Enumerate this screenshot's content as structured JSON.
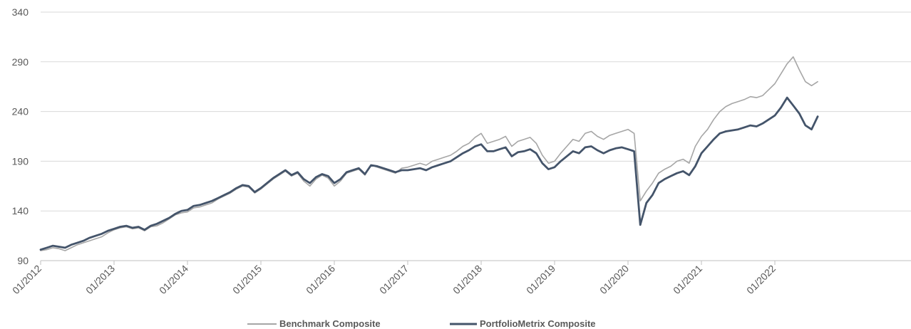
{
  "chart_data": {
    "type": "line",
    "title": "",
    "xlabel": "",
    "ylabel": "",
    "ylim": [
      90,
      340
    ],
    "y_ticks": [
      "90",
      "140",
      "190",
      "240",
      "290",
      "340"
    ],
    "x_range": [
      "01/2012",
      "08/2022"
    ],
    "x_ticks": [
      "01/2012",
      "01/2013",
      "01/2014",
      "01/2015",
      "01/2016",
      "01/2017",
      "01/2018",
      "01/2019",
      "01/2020",
      "01/2021",
      "01/2022"
    ],
    "grid": "horizontal",
    "legend_position": "bottom",
    "x": [
      "01/2012",
      "02/2012",
      "03/2012",
      "04/2012",
      "05/2012",
      "06/2012",
      "07/2012",
      "08/2012",
      "09/2012",
      "10/2012",
      "11/2012",
      "12/2012",
      "01/2013",
      "02/2013",
      "03/2013",
      "04/2013",
      "05/2013",
      "06/2013",
      "07/2013",
      "08/2013",
      "09/2013",
      "10/2013",
      "11/2013",
      "12/2013",
      "01/2014",
      "02/2014",
      "03/2014",
      "04/2014",
      "05/2014",
      "06/2014",
      "07/2014",
      "08/2014",
      "09/2014",
      "10/2014",
      "11/2014",
      "12/2014",
      "01/2015",
      "02/2015",
      "03/2015",
      "04/2015",
      "05/2015",
      "06/2015",
      "07/2015",
      "08/2015",
      "09/2015",
      "10/2015",
      "11/2015",
      "12/2015",
      "01/2016",
      "02/2016",
      "03/2016",
      "04/2016",
      "05/2016",
      "06/2016",
      "07/2016",
      "08/2016",
      "09/2016",
      "10/2016",
      "11/2016",
      "12/2016",
      "01/2017",
      "02/2017",
      "03/2017",
      "04/2017",
      "05/2017",
      "06/2017",
      "07/2017",
      "08/2017",
      "09/2017",
      "10/2017",
      "11/2017",
      "12/2017",
      "01/2018",
      "02/2018",
      "03/2018",
      "04/2018",
      "05/2018",
      "06/2018",
      "07/2018",
      "08/2018",
      "09/2018",
      "10/2018",
      "11/2018",
      "12/2018",
      "01/2019",
      "02/2019",
      "03/2019",
      "04/2019",
      "05/2019",
      "06/2019",
      "07/2019",
      "08/2019",
      "09/2019",
      "10/2019",
      "11/2019",
      "12/2019",
      "01/2020",
      "02/2020",
      "03/2020",
      "04/2020",
      "05/2020",
      "06/2020",
      "07/2020",
      "08/2020",
      "09/2020",
      "10/2020",
      "11/2020",
      "12/2020",
      "01/2021",
      "02/2021",
      "03/2021",
      "04/2021",
      "05/2021",
      "06/2021",
      "07/2021",
      "08/2021",
      "09/2021",
      "10/2021",
      "11/2021",
      "12/2021",
      "01/2022",
      "02/2022",
      "03/2022",
      "04/2022",
      "05/2022",
      "06/2022",
      "07/2022",
      "08/2022"
    ],
    "series": [
      {
        "name": "Benchmark Composite",
        "color": "#a6a6a6",
        "values": [
          100,
          101,
          103,
          102,
          100,
          103,
          106,
          108,
          110,
          112,
          114,
          118,
          121,
          123,
          124,
          122,
          123,
          120,
          124,
          125,
          128,
          132,
          136,
          138,
          139,
          143,
          144,
          146,
          148,
          152,
          155,
          158,
          162,
          165,
          164,
          158,
          162,
          167,
          172,
          176,
          180,
          175,
          178,
          170,
          165,
          172,
          176,
          173,
          165,
          170,
          178,
          180,
          182,
          176,
          186,
          184,
          182,
          180,
          178,
          183,
          184,
          186,
          188,
          186,
          190,
          192,
          194,
          196,
          200,
          205,
          208,
          214,
          218,
          208,
          210,
          212,
          215,
          205,
          210,
          212,
          214,
          208,
          196,
          188,
          190,
          198,
          205,
          212,
          210,
          218,
          220,
          215,
          212,
          216,
          218,
          220,
          222,
          218,
          150,
          160,
          168,
          178,
          182,
          185,
          190,
          192,
          188,
          205,
          215,
          222,
          232,
          240,
          245,
          248,
          250,
          252,
          255,
          254,
          256,
          262,
          268,
          278,
          288,
          295,
          282,
          270,
          266,
          270
        ]
      },
      {
        "name": "PortfolioMetrix Composite",
        "color": "#44546a",
        "values": [
          101,
          103,
          105,
          104,
          103,
          106,
          108,
          110,
          113,
          115,
          117,
          120,
          122,
          124,
          125,
          123,
          124,
          121,
          125,
          127,
          130,
          133,
          137,
          140,
          141,
          145,
          146,
          148,
          150,
          153,
          156,
          159,
          163,
          166,
          165,
          159,
          163,
          168,
          173,
          177,
          181,
          176,
          179,
          172,
          168,
          174,
          177,
          175,
          168,
          172,
          179,
          181,
          183,
          177,
          186,
          185,
          183,
          181,
          179,
          181,
          181,
          182,
          183,
          181,
          184,
          186,
          188,
          190,
          194,
          198,
          201,
          205,
          207,
          200,
          200,
          202,
          204,
          195,
          199,
          200,
          202,
          198,
          188,
          182,
          184,
          190,
          195,
          200,
          198,
          204,
          205,
          201,
          198,
          201,
          203,
          204,
          202,
          200,
          126,
          148,
          156,
          168,
          172,
          175,
          178,
          180,
          176,
          185,
          198,
          205,
          212,
          218,
          220,
          221,
          222,
          224,
          226,
          225,
          228,
          232,
          236,
          244,
          254,
          246,
          238,
          226,
          222,
          235
        ]
      }
    ]
  }
}
